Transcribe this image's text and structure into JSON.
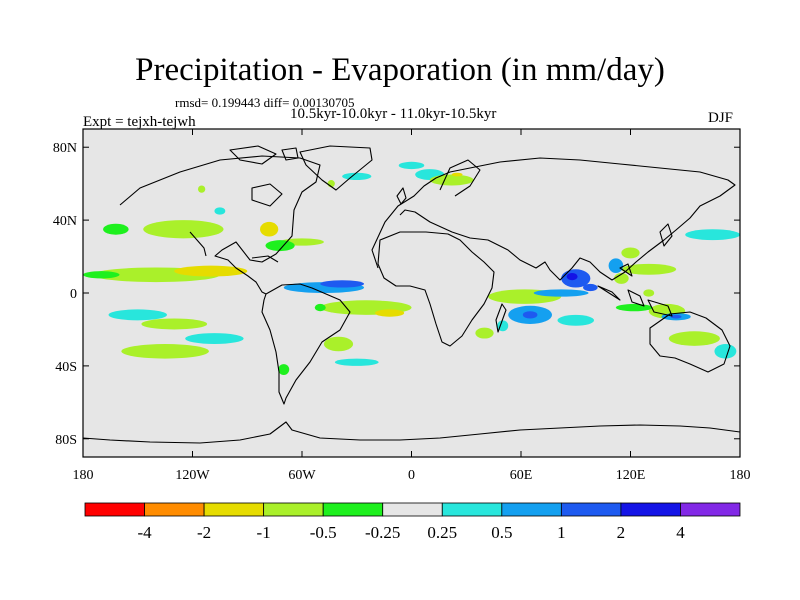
{
  "title": "Precipitation - Evaporation (in mm/day)",
  "stats": "rmsd= 0.199443 diff= 0.00130705",
  "experiment": "Expt = tejxh-tejwh",
  "period": "10.5kyr-10.0kyr - 11.0kyr-10.5kyr",
  "season": "DJF",
  "map": {
    "lon_range": [
      -180,
      180
    ],
    "lat_range": [
      -90,
      90
    ],
    "background_color": "#e6e6e6",
    "lat_ticks": [
      {
        "value": 80,
        "label": "80N"
      },
      {
        "value": 40,
        "label": "40N"
      },
      {
        "value": 0,
        "label": "0"
      },
      {
        "value": -40,
        "label": "40S"
      },
      {
        "value": -80,
        "label": "80S"
      }
    ],
    "lon_ticks": [
      {
        "value": -180,
        "label": "180"
      },
      {
        "value": -120,
        "label": "120W"
      },
      {
        "value": -60,
        "label": "60W"
      },
      {
        "value": 0,
        "label": "0"
      },
      {
        "value": 60,
        "label": "60E"
      },
      {
        "value": 120,
        "label": "120E"
      },
      {
        "value": 180,
        "label": "180"
      }
    ],
    "regions": [
      {
        "lon": -125,
        "lat": 35,
        "rlon": 22,
        "rlat": 5,
        "level": "-0.5"
      },
      {
        "lon": -162,
        "lat": 35,
        "rlon": 7,
        "rlat": 3,
        "level": "-0.25"
      },
      {
        "lon": -140,
        "lat": 10,
        "rlon": 35,
        "rlat": 4,
        "level": "-0.5"
      },
      {
        "lon": -110,
        "lat": 12,
        "rlon": 20,
        "rlat": 3,
        "level": "-1"
      },
      {
        "lon": -170,
        "lat": 10,
        "rlon": 10,
        "rlat": 2,
        "level": "-0.25"
      },
      {
        "lon": -150,
        "lat": -12,
        "rlon": 16,
        "rlat": 3,
        "level": "0.25"
      },
      {
        "lon": -130,
        "lat": -17,
        "rlon": 18,
        "rlat": 3,
        "level": "-0.5"
      },
      {
        "lon": -108,
        "lat": -25,
        "rlon": 16,
        "rlat": 3,
        "level": "0.25"
      },
      {
        "lon": -135,
        "lat": -32,
        "rlon": 24,
        "rlat": 4,
        "level": "-0.5"
      },
      {
        "lon": -60,
        "lat": 28,
        "rlon": 12,
        "rlat": 2,
        "level": "-0.5"
      },
      {
        "lon": -78,
        "lat": 35,
        "rlon": 5,
        "rlat": 4,
        "level": "-1"
      },
      {
        "lon": -72,
        "lat": 26,
        "rlon": 8,
        "rlat": 3,
        "level": "-0.25"
      },
      {
        "lon": -48,
        "lat": 3,
        "rlon": 22,
        "rlat": 3,
        "level": "0.5"
      },
      {
        "lon": -38,
        "lat": 5,
        "rlon": 12,
        "rlat": 2,
        "level": "1"
      },
      {
        "lon": -25,
        "lat": -8,
        "rlon": 25,
        "rlat": 4,
        "level": "-0.5"
      },
      {
        "lon": -12,
        "lat": -11,
        "rlon": 8,
        "rlat": 2,
        "level": "-1"
      },
      {
        "lon": -40,
        "lat": -28,
        "rlon": 8,
        "rlat": 4,
        "level": "-0.5"
      },
      {
        "lon": -30,
        "lat": -38,
        "rlon": 12,
        "rlat": 2,
        "level": "0.25"
      },
      {
        "lon": -50,
        "lat": -8,
        "rlon": 3,
        "rlat": 2,
        "level": "-0.25"
      },
      {
        "lon": -70,
        "lat": -42,
        "rlon": 3,
        "rlat": 3,
        "level": "-0.25"
      },
      {
        "lon": 0,
        "lat": 70,
        "rlon": 7,
        "rlat": 2,
        "level": "0.25"
      },
      {
        "lon": 10,
        "lat": 65,
        "rlon": 8,
        "rlat": 3,
        "level": "0.25"
      },
      {
        "lon": 22,
        "lat": 62,
        "rlon": 12,
        "rlat": 3,
        "level": "-0.5"
      },
      {
        "lon": 25,
        "lat": 65,
        "rlon": 3,
        "rlat": 1,
        "level": "-1"
      },
      {
        "lon": -30,
        "lat": 64,
        "rlon": 8,
        "rlat": 2,
        "level": "0.25"
      },
      {
        "lon": -44,
        "lat": 60,
        "rlon": 2,
        "rlat": 2,
        "level": "-0.5"
      },
      {
        "lon": -115,
        "lat": 57,
        "rlon": 2,
        "rlat": 2,
        "level": "-0.5"
      },
      {
        "lon": -105,
        "lat": 45,
        "rlon": 3,
        "rlat": 2,
        "level": "0.25"
      },
      {
        "lon": 62,
        "lat": -2,
        "rlon": 20,
        "rlat": 4,
        "level": "-0.5"
      },
      {
        "lon": 82,
        "lat": 0,
        "rlon": 15,
        "rlat": 2,
        "level": "0.5"
      },
      {
        "lon": 90,
        "lat": 8,
        "rlon": 8,
        "rlat": 5,
        "level": "1"
      },
      {
        "lon": 88,
        "lat": 9,
        "rlon": 3,
        "rlat": 2,
        "level": "2"
      },
      {
        "lon": 98,
        "lat": 3,
        "rlon": 4,
        "rlat": 2,
        "level": "1"
      },
      {
        "lon": 65,
        "lat": -12,
        "rlon": 12,
        "rlat": 5,
        "level": "0.5"
      },
      {
        "lon": 65,
        "lat": -12,
        "rlon": 4,
        "rlat": 2,
        "level": "1"
      },
      {
        "lon": 50,
        "lat": -18,
        "rlon": 3,
        "rlat": 3,
        "level": "0.25"
      },
      {
        "lon": 40,
        "lat": -22,
        "rlon": 5,
        "rlat": 3,
        "level": "-0.5"
      },
      {
        "lon": 90,
        "lat": -15,
        "rlon": 10,
        "rlat": 3,
        "level": "0.25"
      },
      {
        "lon": 130,
        "lat": 13,
        "rlon": 15,
        "rlat": 3,
        "level": "-0.5"
      },
      {
        "lon": 120,
        "lat": 22,
        "rlon": 5,
        "rlat": 3,
        "level": "-0.5"
      },
      {
        "lon": 112,
        "lat": 15,
        "rlon": 4,
        "rlat": 4,
        "level": "0.5"
      },
      {
        "lon": 115,
        "lat": 8,
        "rlon": 4,
        "rlat": 3,
        "level": "-0.5"
      },
      {
        "lon": 165,
        "lat": 32,
        "rlon": 15,
        "rlat": 3,
        "level": "0.25"
      },
      {
        "lon": 140,
        "lat": -10,
        "rlon": 10,
        "rlat": 4,
        "level": "-0.5"
      },
      {
        "lon": 145,
        "lat": -13,
        "rlon": 8,
        "rlat": 2,
        "level": "0.5"
      },
      {
        "lon": 145,
        "lat": -13,
        "rlon": 3,
        "rlat": 1,
        "level": "1"
      },
      {
        "lon": 155,
        "lat": -25,
        "rlon": 14,
        "rlat": 4,
        "level": "-0.5"
      },
      {
        "lon": 172,
        "lat": -32,
        "rlon": 6,
        "rlat": 4,
        "level": "0.25"
      },
      {
        "lon": 130,
        "lat": 0,
        "rlon": 3,
        "rlat": 2,
        "level": "-0.5"
      },
      {
        "lon": 122,
        "lat": -8,
        "rlon": 10,
        "rlat": 2,
        "level": "-0.25"
      }
    ]
  },
  "legend": {
    "colors": [
      "#ff0000",
      "#ff8c00",
      "#e6dc00",
      "#aaf02a",
      "#1ef01e",
      "#e6e6e6",
      "#28e6dc",
      "#14a0f0",
      "#1e5af0",
      "#1414e6",
      "#8228e6"
    ],
    "labels": [
      "-4",
      "-2",
      "-1",
      "-0.5",
      "-0.25",
      "0.25",
      "0.5",
      "1",
      "2",
      "4"
    ]
  }
}
